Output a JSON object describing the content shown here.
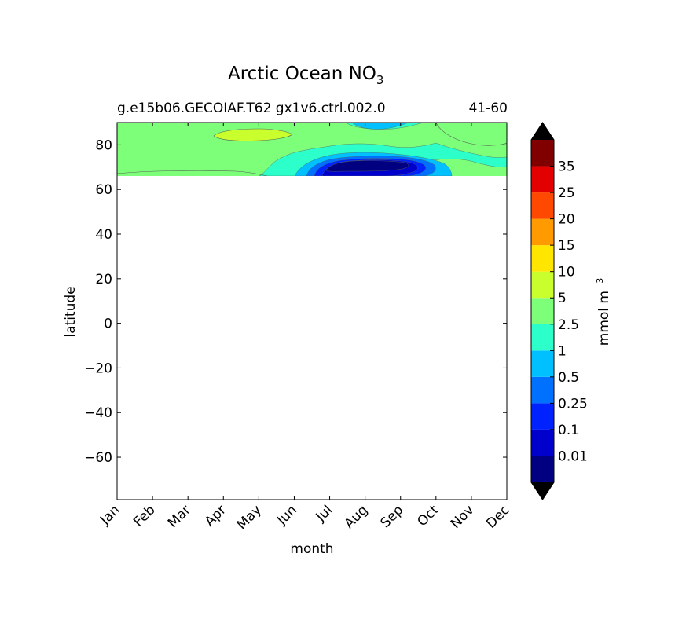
{
  "chart_data": {
    "type": "heatmap",
    "title": "Arctic Ocean NO",
    "title_subscript": "3",
    "subtitle_left": "g.e15b06.GECOIAF.T62 gx1v6.ctrl.002.0",
    "subtitle_right": "41-60",
    "xlabel": "month",
    "ylabel": "latitude",
    "x_categories": [
      "Jan",
      "Feb",
      "Mar",
      "Apr",
      "May",
      "Jun",
      "Jul",
      "Aug",
      "Sep",
      "Oct",
      "Nov",
      "Dec"
    ],
    "yticks": [
      80,
      60,
      40,
      20,
      0,
      -20,
      -40,
      -60
    ],
    "ylim": [
      -79,
      90
    ],
    "colorbar": {
      "label": "mmol m",
      "label_superscript": "−3",
      "tick_labels": [
        "0.01",
        "0.1",
        "0.25",
        "0.5",
        "1",
        "2.5",
        "5",
        "10",
        "15",
        "20",
        "25",
        "35"
      ],
      "colors": [
        "#000080",
        "#0000cd",
        "#0022ff",
        "#0070ff",
        "#00c0ff",
        "#2cffca",
        "#7dff7a",
        "#c8ff2d",
        "#ffe600",
        "#ff9a00",
        "#ff4800",
        "#e30000",
        "#800000"
      ],
      "extend": "both"
    },
    "field_region": "latitudes ~66 to 90 N, all months",
    "regions": [
      {
        "level": "2.5–5",
        "color": "#7dff7a",
        "desc": "background over Arctic basin"
      },
      {
        "level": "5–10",
        "color": "#c8ff2d",
        "desc": "patch near 85N, Apr–May"
      },
      {
        "level": "1–2.5",
        "color": "#2cffca",
        "desc": "Jun–Nov near 68–78N"
      },
      {
        "level": "0.5–1",
        "color": "#00c0ff",
        "desc": "Jul–Sep near 70N and near 90N Aug"
      },
      {
        "level": "0.25–0.5",
        "color": "#0070ff",
        "desc": "Jul–Sep"
      },
      {
        "level": "0.1–0.25",
        "color": "#0022ff",
        "desc": "Jul–Sep"
      },
      {
        "level": "0.01–0.1",
        "color": "#0000cd",
        "desc": "Jul–Sep core"
      },
      {
        "level": "<0.01",
        "color": "#000080",
        "desc": "Aug core"
      }
    ]
  }
}
